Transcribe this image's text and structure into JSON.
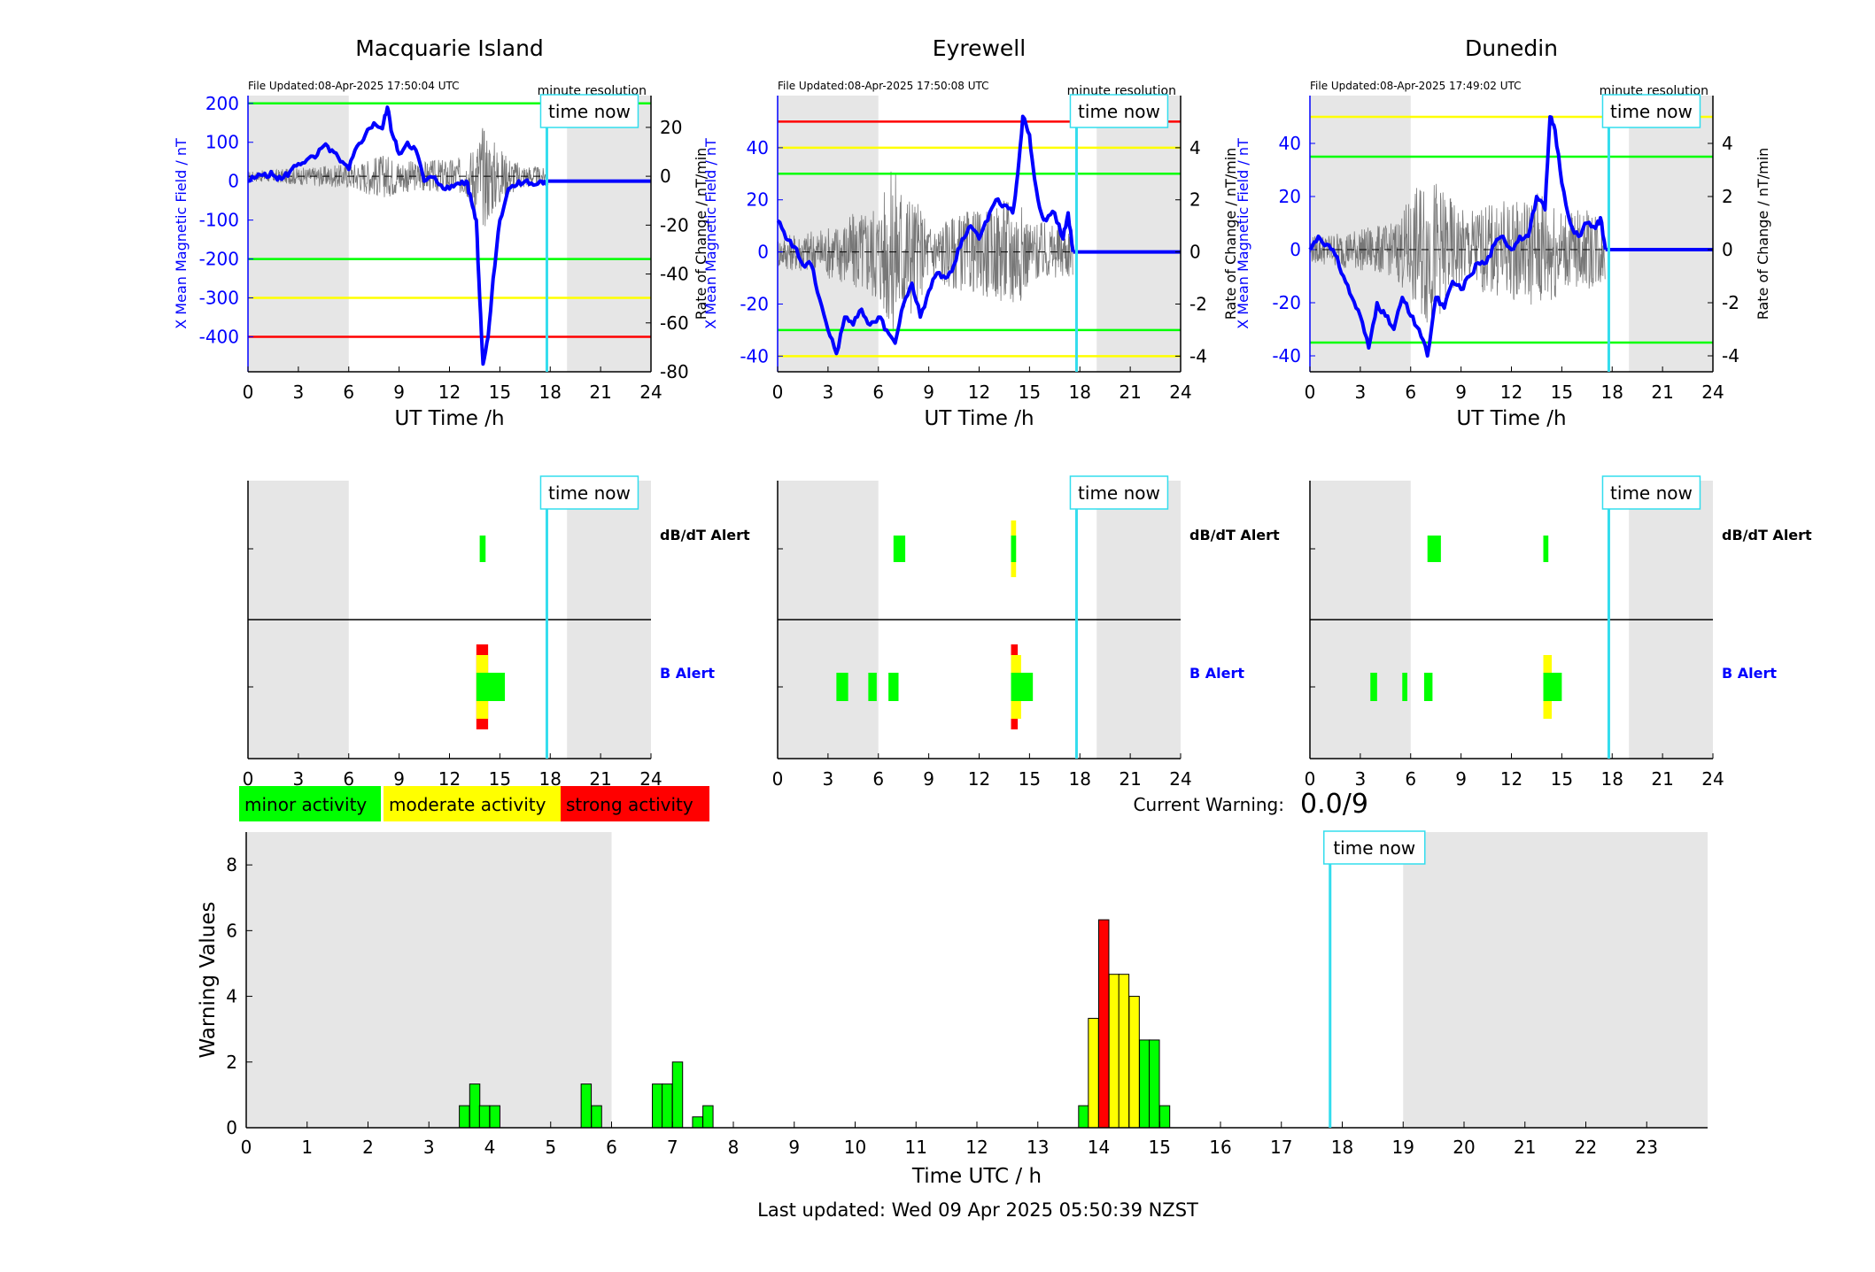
{
  "page": {
    "last_updated": "Last updated: Wed 09 Apr 2025 05:50:39 NZST",
    "current_warning_label": "Current Warning:",
    "current_warning_value": "0.0/9"
  },
  "common": {
    "time_now_label": "time now",
    "resolution_label": "minute resolution",
    "x_axis_label": "UT Time /h",
    "left_axis_label": "X Mean Magnetic Field / nT",
    "right_axis_label": "Rate of Change / nT/min",
    "dbdt_alert_label": "dB/dT Alert",
    "b_alert_label": "B Alert",
    "x_ticks": [
      0,
      3,
      6,
      9,
      12,
      15,
      18,
      21,
      24
    ],
    "x_range": [
      0,
      24
    ],
    "night_shading": [
      [
        0,
        6
      ],
      [
        19,
        24
      ]
    ],
    "time_now_hour": 17.8
  },
  "legend": {
    "minor": "minor activity",
    "moderate": "moderate activity",
    "strong": "strong activity"
  },
  "colors": {
    "green": "#00ff00",
    "yellow": "#ffff00",
    "red": "#ff0000",
    "blue": "#0000ff",
    "cyan": "#33ddee",
    "shade": "#e6e6e6"
  },
  "chart_data": [
    {
      "type": "line",
      "title": "Macquarie Island",
      "file_updated": "File Updated:08-Apr-2025 17:50:04 UTC",
      "ylim": [
        -490,
        220
      ],
      "yticks": [
        200,
        100,
        0,
        -100,
        -200,
        -300,
        -400
      ],
      "y2lim": [
        -80,
        33
      ],
      "y2ticks": [
        20,
        0,
        -20,
        -40,
        -60,
        -80
      ],
      "thresholds": [
        {
          "value": 200,
          "color": "green"
        },
        {
          "value": -200,
          "color": "green"
        },
        {
          "value": -300,
          "color": "yellow"
        },
        {
          "value": -400,
          "color": "red"
        }
      ],
      "x_mean_field": [
        [
          0,
          0
        ],
        [
          0.5,
          10
        ],
        [
          1,
          20
        ],
        [
          1.5,
          15
        ],
        [
          2,
          5
        ],
        [
          2.5,
          25
        ],
        [
          3,
          45
        ],
        [
          3.5,
          55
        ],
        [
          4,
          60
        ],
        [
          4.5,
          90
        ],
        [
          5,
          80
        ],
        [
          5.5,
          50
        ],
        [
          6,
          30
        ],
        [
          6.5,
          90
        ],
        [
          7,
          120
        ],
        [
          7.5,
          150
        ],
        [
          8,
          135
        ],
        [
          8.3,
          190
        ],
        [
          8.6,
          120
        ],
        [
          9,
          70
        ],
        [
          9.5,
          100
        ],
        [
          10,
          80
        ],
        [
          10.5,
          0
        ],
        [
          11,
          10
        ],
        [
          11.5,
          -10
        ],
        [
          12,
          -20
        ],
        [
          12.5,
          -5
        ],
        [
          13,
          0
        ],
        [
          13.3,
          -50
        ],
        [
          13.6,
          -100
        ],
        [
          13.8,
          -300
        ],
        [
          14,
          -470
        ],
        [
          14.3,
          -400
        ],
        [
          14.6,
          -250
        ],
        [
          15,
          -100
        ],
        [
          15.5,
          -20
        ],
        [
          16,
          -10
        ],
        [
          16.5,
          0
        ],
        [
          17,
          -10
        ],
        [
          17.5,
          0
        ],
        [
          17.8,
          -10
        ]
      ],
      "dbdt": {
        "start": 0,
        "end": 17.8,
        "amp": [
          [
            0,
            2
          ],
          [
            6,
            5
          ],
          [
            8,
            9
          ],
          [
            10,
            6
          ],
          [
            13,
            8
          ],
          [
            14,
            22
          ],
          [
            15,
            12
          ],
          [
            16,
            6
          ],
          [
            17.8,
            3
          ]
        ]
      },
      "dbdt_alerts": [
        {
          "start": 13.8,
          "end": 14.15,
          "level": "minor"
        }
      ],
      "b_alerts": [
        {
          "start": 13.6,
          "end": 14.3,
          "level": "strong"
        },
        {
          "start": 13.6,
          "end": 14.3,
          "level": "moderate"
        },
        {
          "start": 13.6,
          "end": 15.3,
          "level": "minor"
        }
      ]
    },
    {
      "type": "line",
      "title": "Eyrewell",
      "file_updated": "File Updated:08-Apr-2025 17:50:08 UTC",
      "ylim": [
        -46,
        60
      ],
      "yticks": [
        40,
        20,
        0,
        -20,
        -40
      ],
      "y2lim": [
        -4.6,
        6.0
      ],
      "y2ticks": [
        4,
        2,
        0,
        -2,
        -4
      ],
      "thresholds": [
        {
          "value": 50,
          "color": "red"
        },
        {
          "value": 40,
          "color": "yellow"
        },
        {
          "value": 30,
          "color": "green"
        },
        {
          "value": -30,
          "color": "green"
        },
        {
          "value": -40,
          "color": "yellow"
        }
      ],
      "x_mean_field": [
        [
          0,
          12
        ],
        [
          0.5,
          5
        ],
        [
          1,
          2
        ],
        [
          1.5,
          -5
        ],
        [
          2,
          -5
        ],
        [
          2.5,
          -18
        ],
        [
          3,
          -30
        ],
        [
          3.5,
          -39
        ],
        [
          4,
          -25
        ],
        [
          4.5,
          -28
        ],
        [
          5,
          -22
        ],
        [
          5.5,
          -28
        ],
        [
          6,
          -25
        ],
        [
          6.5,
          -30
        ],
        [
          7,
          -35
        ],
        [
          7.5,
          -20
        ],
        [
          8,
          -12
        ],
        [
          8.5,
          -25
        ],
        [
          9,
          -15
        ],
        [
          9.5,
          -8
        ],
        [
          10,
          -10
        ],
        [
          10.5,
          -5
        ],
        [
          11,
          5
        ],
        [
          11.5,
          10
        ],
        [
          12,
          5
        ],
        [
          12.5,
          12
        ],
        [
          13,
          20
        ],
        [
          13.5,
          18
        ],
        [
          14,
          15
        ],
        [
          14.3,
          30
        ],
        [
          14.6,
          52
        ],
        [
          15,
          45
        ],
        [
          15.3,
          28
        ],
        [
          15.7,
          15
        ],
        [
          16,
          12
        ],
        [
          16.5,
          15
        ],
        [
          17,
          5
        ],
        [
          17.3,
          15
        ],
        [
          17.6,
          0
        ]
      ],
      "dbdt": {
        "start": 0,
        "end": 17.6,
        "amp": [
          [
            0,
            0.6
          ],
          [
            3,
            1.0
          ],
          [
            6,
            2.0
          ],
          [
            7,
            3.5
          ],
          [
            9,
            1.2
          ],
          [
            13,
            1.8
          ],
          [
            14,
            2.5
          ],
          [
            15,
            1.2
          ],
          [
            17.6,
            1.0
          ]
        ]
      },
      "dbdt_alerts": [
        {
          "start": 6.9,
          "end": 7.6,
          "level": "minor"
        },
        {
          "start": 13.9,
          "end": 14.2,
          "level": "moderate"
        },
        {
          "start": 13.9,
          "end": 14.2,
          "level": "minor"
        }
      ],
      "b_alerts": [
        {
          "start": 3.5,
          "end": 4.2,
          "level": "minor"
        },
        {
          "start": 5.4,
          "end": 5.9,
          "level": "minor"
        },
        {
          "start": 6.6,
          "end": 7.2,
          "level": "minor"
        },
        {
          "start": 13.9,
          "end": 14.3,
          "level": "strong"
        },
        {
          "start": 13.9,
          "end": 14.5,
          "level": "moderate"
        },
        {
          "start": 13.9,
          "end": 15.2,
          "level": "minor"
        }
      ]
    },
    {
      "type": "line",
      "title": "Dunedin",
      "file_updated": "File Updated:08-Apr-2025 17:49:02 UTC",
      "ylim": [
        -46,
        58
      ],
      "yticks": [
        40,
        20,
        0,
        -20,
        -40
      ],
      "y2lim": [
        -4.6,
        5.8
      ],
      "y2ticks": [
        4,
        2,
        0,
        -2,
        -4
      ],
      "thresholds": [
        {
          "value": 50,
          "color": "yellow"
        },
        {
          "value": 35,
          "color": "green"
        },
        {
          "value": -35,
          "color": "green"
        }
      ],
      "x_mean_field": [
        [
          0,
          0
        ],
        [
          0.5,
          5
        ],
        [
          1,
          2
        ],
        [
          1.5,
          -2
        ],
        [
          2,
          -10
        ],
        [
          2.5,
          -18
        ],
        [
          3,
          -25
        ],
        [
          3.5,
          -37
        ],
        [
          4,
          -20
        ],
        [
          4.5,
          -25
        ],
        [
          5,
          -30
        ],
        [
          5.5,
          -18
        ],
        [
          6,
          -25
        ],
        [
          6.5,
          -30
        ],
        [
          7,
          -40
        ],
        [
          7.5,
          -18
        ],
        [
          8,
          -22
        ],
        [
          8.5,
          -12
        ],
        [
          9,
          -15
        ],
        [
          9.5,
          -10
        ],
        [
          10,
          -5
        ],
        [
          10.5,
          -5
        ],
        [
          11,
          2
        ],
        [
          11.5,
          5
        ],
        [
          12,
          0
        ],
        [
          12.5,
          5
        ],
        [
          13,
          5
        ],
        [
          13.5,
          20
        ],
        [
          14,
          15
        ],
        [
          14.3,
          50
        ],
        [
          14.6,
          45
        ],
        [
          15,
          25
        ],
        [
          15.5,
          10
        ],
        [
          16,
          5
        ],
        [
          16.5,
          10
        ],
        [
          17,
          8
        ],
        [
          17.3,
          12
        ],
        [
          17.6,
          0
        ]
      ],
      "dbdt": {
        "start": 0,
        "end": 17.6,
        "amp": [
          [
            0,
            0.5
          ],
          [
            3,
            0.8
          ],
          [
            5,
            1.0
          ],
          [
            7,
            3.0
          ],
          [
            9,
            1.5
          ],
          [
            13,
            2.0
          ],
          [
            14,
            2.5
          ],
          [
            15,
            1.5
          ],
          [
            17.6,
            1.5
          ]
        ]
      },
      "dbdt_alerts": [
        {
          "start": 7.0,
          "end": 7.8,
          "level": "minor"
        },
        {
          "start": 13.9,
          "end": 14.2,
          "level": "minor"
        }
      ],
      "b_alerts": [
        {
          "start": 3.6,
          "end": 4.0,
          "level": "minor"
        },
        {
          "start": 5.5,
          "end": 5.8,
          "level": "minor"
        },
        {
          "start": 6.8,
          "end": 7.3,
          "level": "minor"
        },
        {
          "start": 13.9,
          "end": 14.4,
          "level": "moderate"
        },
        {
          "start": 13.9,
          "end": 15.0,
          "level": "minor"
        }
      ]
    },
    {
      "type": "bar",
      "title": "",
      "xlabel": "Time UTC / h",
      "ylabel": "Warning Values",
      "xlim": [
        0,
        24
      ],
      "ylim": [
        0,
        9
      ],
      "xticks": [
        0,
        1,
        2,
        3,
        4,
        5,
        6,
        7,
        8,
        9,
        10,
        11,
        12,
        13,
        14,
        15,
        16,
        17,
        18,
        19,
        20,
        21,
        22,
        23
      ],
      "yticks": [
        0,
        2,
        4,
        6,
        8
      ],
      "bin_width_h": 0.1667,
      "bars": [
        {
          "x": 3.5,
          "value": 0.67,
          "level": "minor"
        },
        {
          "x": 3.67,
          "value": 1.33,
          "level": "minor"
        },
        {
          "x": 3.83,
          "value": 0.67,
          "level": "minor"
        },
        {
          "x": 4.0,
          "value": 0.67,
          "level": "minor"
        },
        {
          "x": 5.5,
          "value": 1.33,
          "level": "minor"
        },
        {
          "x": 5.67,
          "value": 0.67,
          "level": "minor"
        },
        {
          "x": 6.67,
          "value": 1.33,
          "level": "minor"
        },
        {
          "x": 6.83,
          "value": 1.33,
          "level": "minor"
        },
        {
          "x": 7.0,
          "value": 2.0,
          "level": "minor"
        },
        {
          "x": 7.33,
          "value": 0.33,
          "level": "minor"
        },
        {
          "x": 7.5,
          "value": 0.67,
          "level": "minor"
        },
        {
          "x": 13.67,
          "value": 0.67,
          "level": "minor"
        },
        {
          "x": 13.83,
          "value": 3.33,
          "level": "moderate"
        },
        {
          "x": 14.0,
          "value": 6.33,
          "level": "strong"
        },
        {
          "x": 14.17,
          "value": 4.67,
          "level": "moderate"
        },
        {
          "x": 14.33,
          "value": 4.67,
          "level": "moderate"
        },
        {
          "x": 14.5,
          "value": 4.0,
          "level": "moderate"
        },
        {
          "x": 14.67,
          "value": 2.67,
          "level": "minor"
        },
        {
          "x": 14.83,
          "value": 2.67,
          "level": "minor"
        },
        {
          "x": 15.0,
          "value": 0.67,
          "level": "minor"
        }
      ]
    }
  ]
}
